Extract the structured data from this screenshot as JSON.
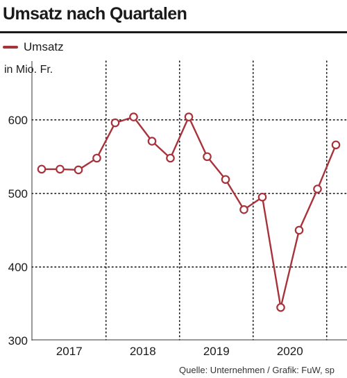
{
  "title": "Umsatz nach Quartalen",
  "source": "Quelle: Unternehmen / Grafik: FuW, sp",
  "colors": {
    "series": "#a8323a",
    "text": "#1a1a1a",
    "grid": "#1a1a1a"
  },
  "chart_data": {
    "type": "line",
    "ylabel": "in Mio. Fr.",
    "legend": {
      "placement": "top-left",
      "entries": [
        "Umsatz"
      ]
    },
    "ylim": [
      300,
      680
    ],
    "yticks": [
      300,
      400,
      500,
      600
    ],
    "ytick_labels": [
      "300",
      "400",
      "500",
      "600"
    ],
    "grid": "dotted",
    "x_categories": [
      "2017",
      "2018",
      "2019",
      "2020"
    ],
    "series": [
      {
        "name": "Umsatz",
        "color": "#a8323a",
        "points": [
          {
            "year": "2017",
            "quarter": 1,
            "value": 533
          },
          {
            "year": "2017",
            "quarter": 2,
            "value": 533
          },
          {
            "year": "2017",
            "quarter": 3,
            "value": 532
          },
          {
            "year": "2017",
            "quarter": 4,
            "value": 548
          },
          {
            "year": "2018",
            "quarter": 1,
            "value": 596
          },
          {
            "year": "2018",
            "quarter": 2,
            "value": 604
          },
          {
            "year": "2018",
            "quarter": 3,
            "value": 571
          },
          {
            "year": "2018",
            "quarter": 4,
            "value": 548
          },
          {
            "year": "2019",
            "quarter": 1,
            "value": 604
          },
          {
            "year": "2019",
            "quarter": 2,
            "value": 550
          },
          {
            "year": "2019",
            "quarter": 3,
            "value": 519
          },
          {
            "year": "2019",
            "quarter": 4,
            "value": 478
          },
          {
            "year": "2020",
            "quarter": 1,
            "value": 495
          },
          {
            "year": "2020",
            "quarter": 2,
            "value": 345
          },
          {
            "year": "2020",
            "quarter": 3,
            "value": 450
          },
          {
            "year": "2020",
            "quarter": 4,
            "value": 506
          },
          {
            "year": "2021",
            "quarter": 1,
            "value": 566
          }
        ]
      }
    ]
  }
}
